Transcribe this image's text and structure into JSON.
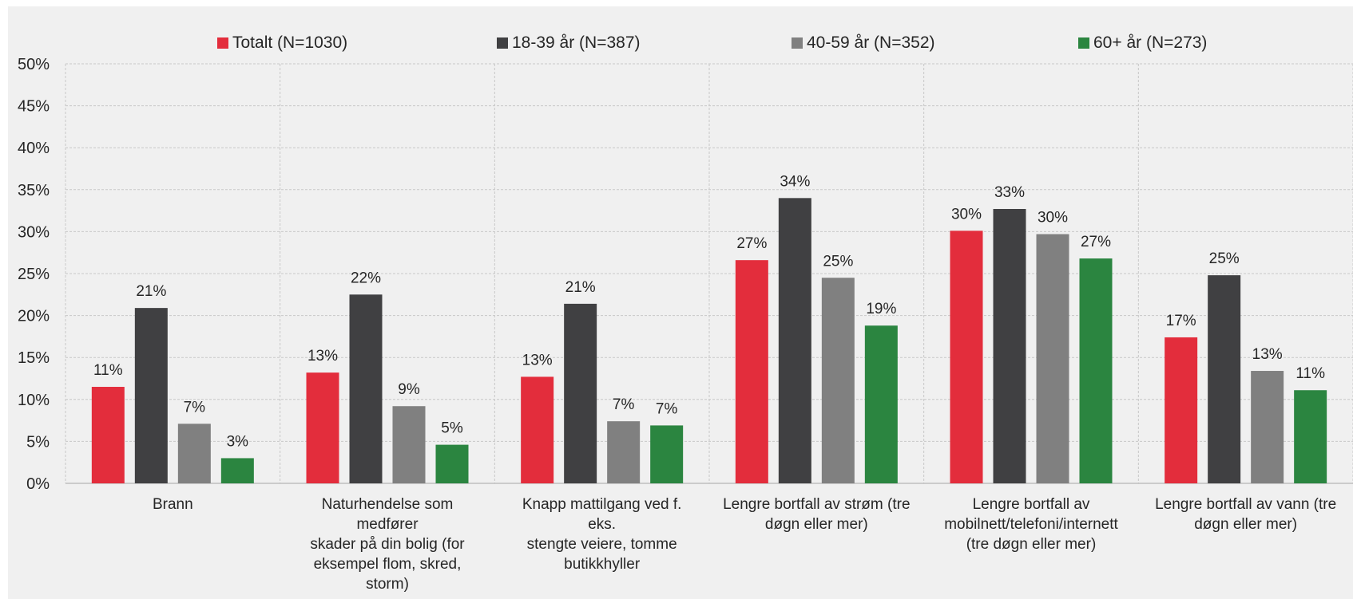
{
  "chart_data": {
    "type": "bar",
    "title": "",
    "xlabel": "",
    "ylabel": "",
    "ylim": [
      0,
      50
    ],
    "yticks": [
      "0%",
      "5%",
      "10%",
      "15%",
      "20%",
      "25%",
      "30%",
      "35%",
      "40%",
      "45%",
      "50%"
    ],
    "grid": true,
    "legend_position": "top",
    "categories": [
      "Brann",
      "Naturhendelse som medfører skader på din bolig (for eksempel flom, skred, storm)",
      "Knapp mattilgang ved f. eks. stengte veiere, tomme butikkhyller",
      "Lengre bortfall av strøm (tre døgn eller mer)",
      "Lengre bortfall av mobilnett/telefoni/internett (tre døgn eller mer)",
      "Lengre bortfall av vann (tre døgn eller mer)"
    ],
    "category_lines": [
      [
        "Brann"
      ],
      [
        "Naturhendelse som medfører",
        "skader på din bolig (for",
        "eksempel flom, skred, storm)"
      ],
      [
        "Knapp mattilgang ved f. eks.",
        "stengte veiere, tomme",
        "butikkhyller"
      ],
      [
        "Lengre bortfall av strøm (tre",
        "døgn eller mer)"
      ],
      [
        "Lengre bortfall av",
        "mobilnett/telefoni/internett",
        "(tre døgn eller mer)"
      ],
      [
        "Lengre bortfall av vann (tre",
        "døgn eller mer)"
      ]
    ],
    "series": [
      {
        "name": "Totalt (N=1030)",
        "color": "#e32d3c",
        "values": [
          11.5,
          13.2,
          12.7,
          26.6,
          30.1,
          17.4
        ],
        "labels": [
          "11%",
          "13%",
          "13%",
          "27%",
          "30%",
          "17%"
        ]
      },
      {
        "name": "18-39 år (N=387)",
        "color": "#404042",
        "values": [
          20.9,
          22.5,
          21.4,
          34.0,
          32.7,
          24.8
        ],
        "labels": [
          "21%",
          "22%",
          "21%",
          "34%",
          "33%",
          "25%"
        ]
      },
      {
        "name": "40-59 år (N=352)",
        "color": "#808080",
        "values": [
          7.1,
          9.2,
          7.4,
          24.5,
          29.7,
          13.4
        ],
        "labels": [
          "7%",
          "9%",
          "7%",
          "25%",
          "30%",
          "13%"
        ]
      },
      {
        "name": "60+ år (N=273)",
        "color": "#2b8540",
        "values": [
          3.0,
          4.6,
          6.9,
          18.8,
          26.8,
          11.1
        ],
        "labels": [
          "3%",
          "5%",
          "7%",
          "19%",
          "27%",
          "11%"
        ]
      }
    ]
  }
}
